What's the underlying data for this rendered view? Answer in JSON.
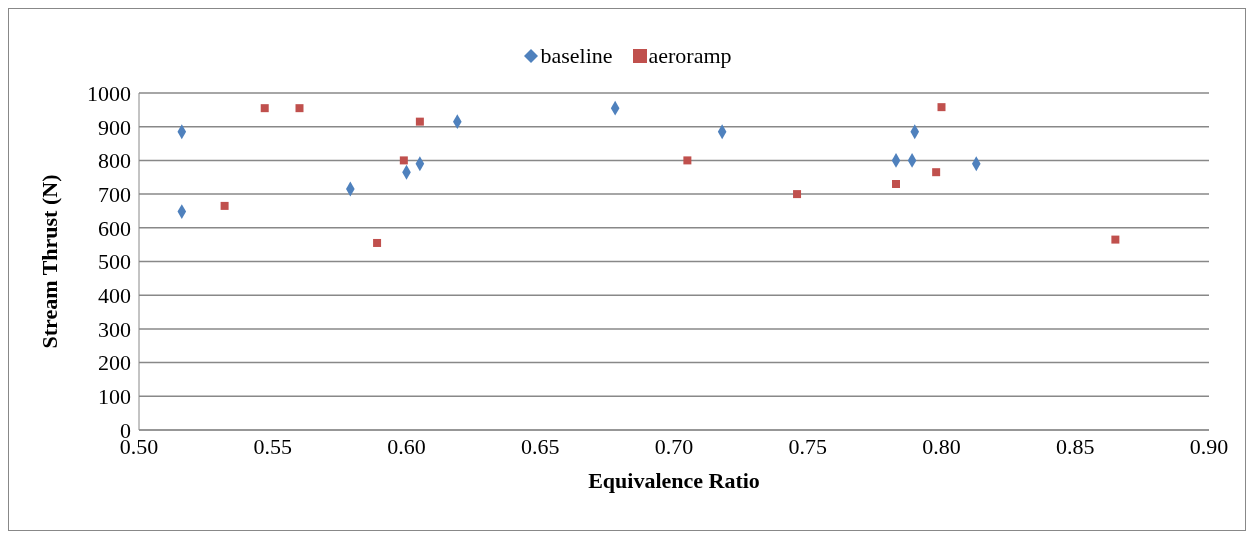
{
  "chart_data": {
    "type": "scatter",
    "xlabel": "Equivalence Ratio",
    "ylabel": "Stream Thrust (N)",
    "xlim": [
      0.5,
      0.9
    ],
    "xticks": [
      {
        "value": 0.5,
        "label": "0.50"
      },
      {
        "value": 0.55,
        "label": "0.55"
      },
      {
        "value": 0.6,
        "label": "0.60"
      },
      {
        "value": 0.65,
        "label": "0.65"
      },
      {
        "value": 0.7,
        "label": "0.70"
      },
      {
        "value": 0.75,
        "label": "0.75"
      },
      {
        "value": 0.8,
        "label": "0.80"
      },
      {
        "value": 0.85,
        "label": "0.85"
      },
      {
        "value": 0.9,
        "label": "0.90"
      }
    ],
    "ylim": [
      0,
      1000
    ],
    "yticks": [
      0,
      100,
      200,
      300,
      400,
      500,
      600,
      700,
      800,
      900,
      1000
    ],
    "grid": "y",
    "legend": "top",
    "series": [
      {
        "name": "baseline",
        "color": "#4f81bd",
        "marker": "diamond",
        "x": [
          0.516,
          0.516,
          0.579,
          0.6,
          0.605,
          0.619,
          0.678,
          0.718,
          0.783,
          0.789,
          0.79,
          0.813
        ],
        "values": [
          885,
          648,
          715,
          765,
          790,
          915,
          955,
          885,
          800,
          800,
          885,
          790
        ]
      },
      {
        "name": "aeroramp",
        "color": "#c0504d",
        "marker": "square",
        "x": [
          0.532,
          0.547,
          0.56,
          0.589,
          0.599,
          0.605,
          0.705,
          0.746,
          0.783,
          0.798,
          0.8,
          0.865
        ],
        "values": [
          665,
          955,
          955,
          555,
          800,
          915,
          800,
          700,
          730,
          765,
          958,
          565
        ]
      }
    ]
  }
}
